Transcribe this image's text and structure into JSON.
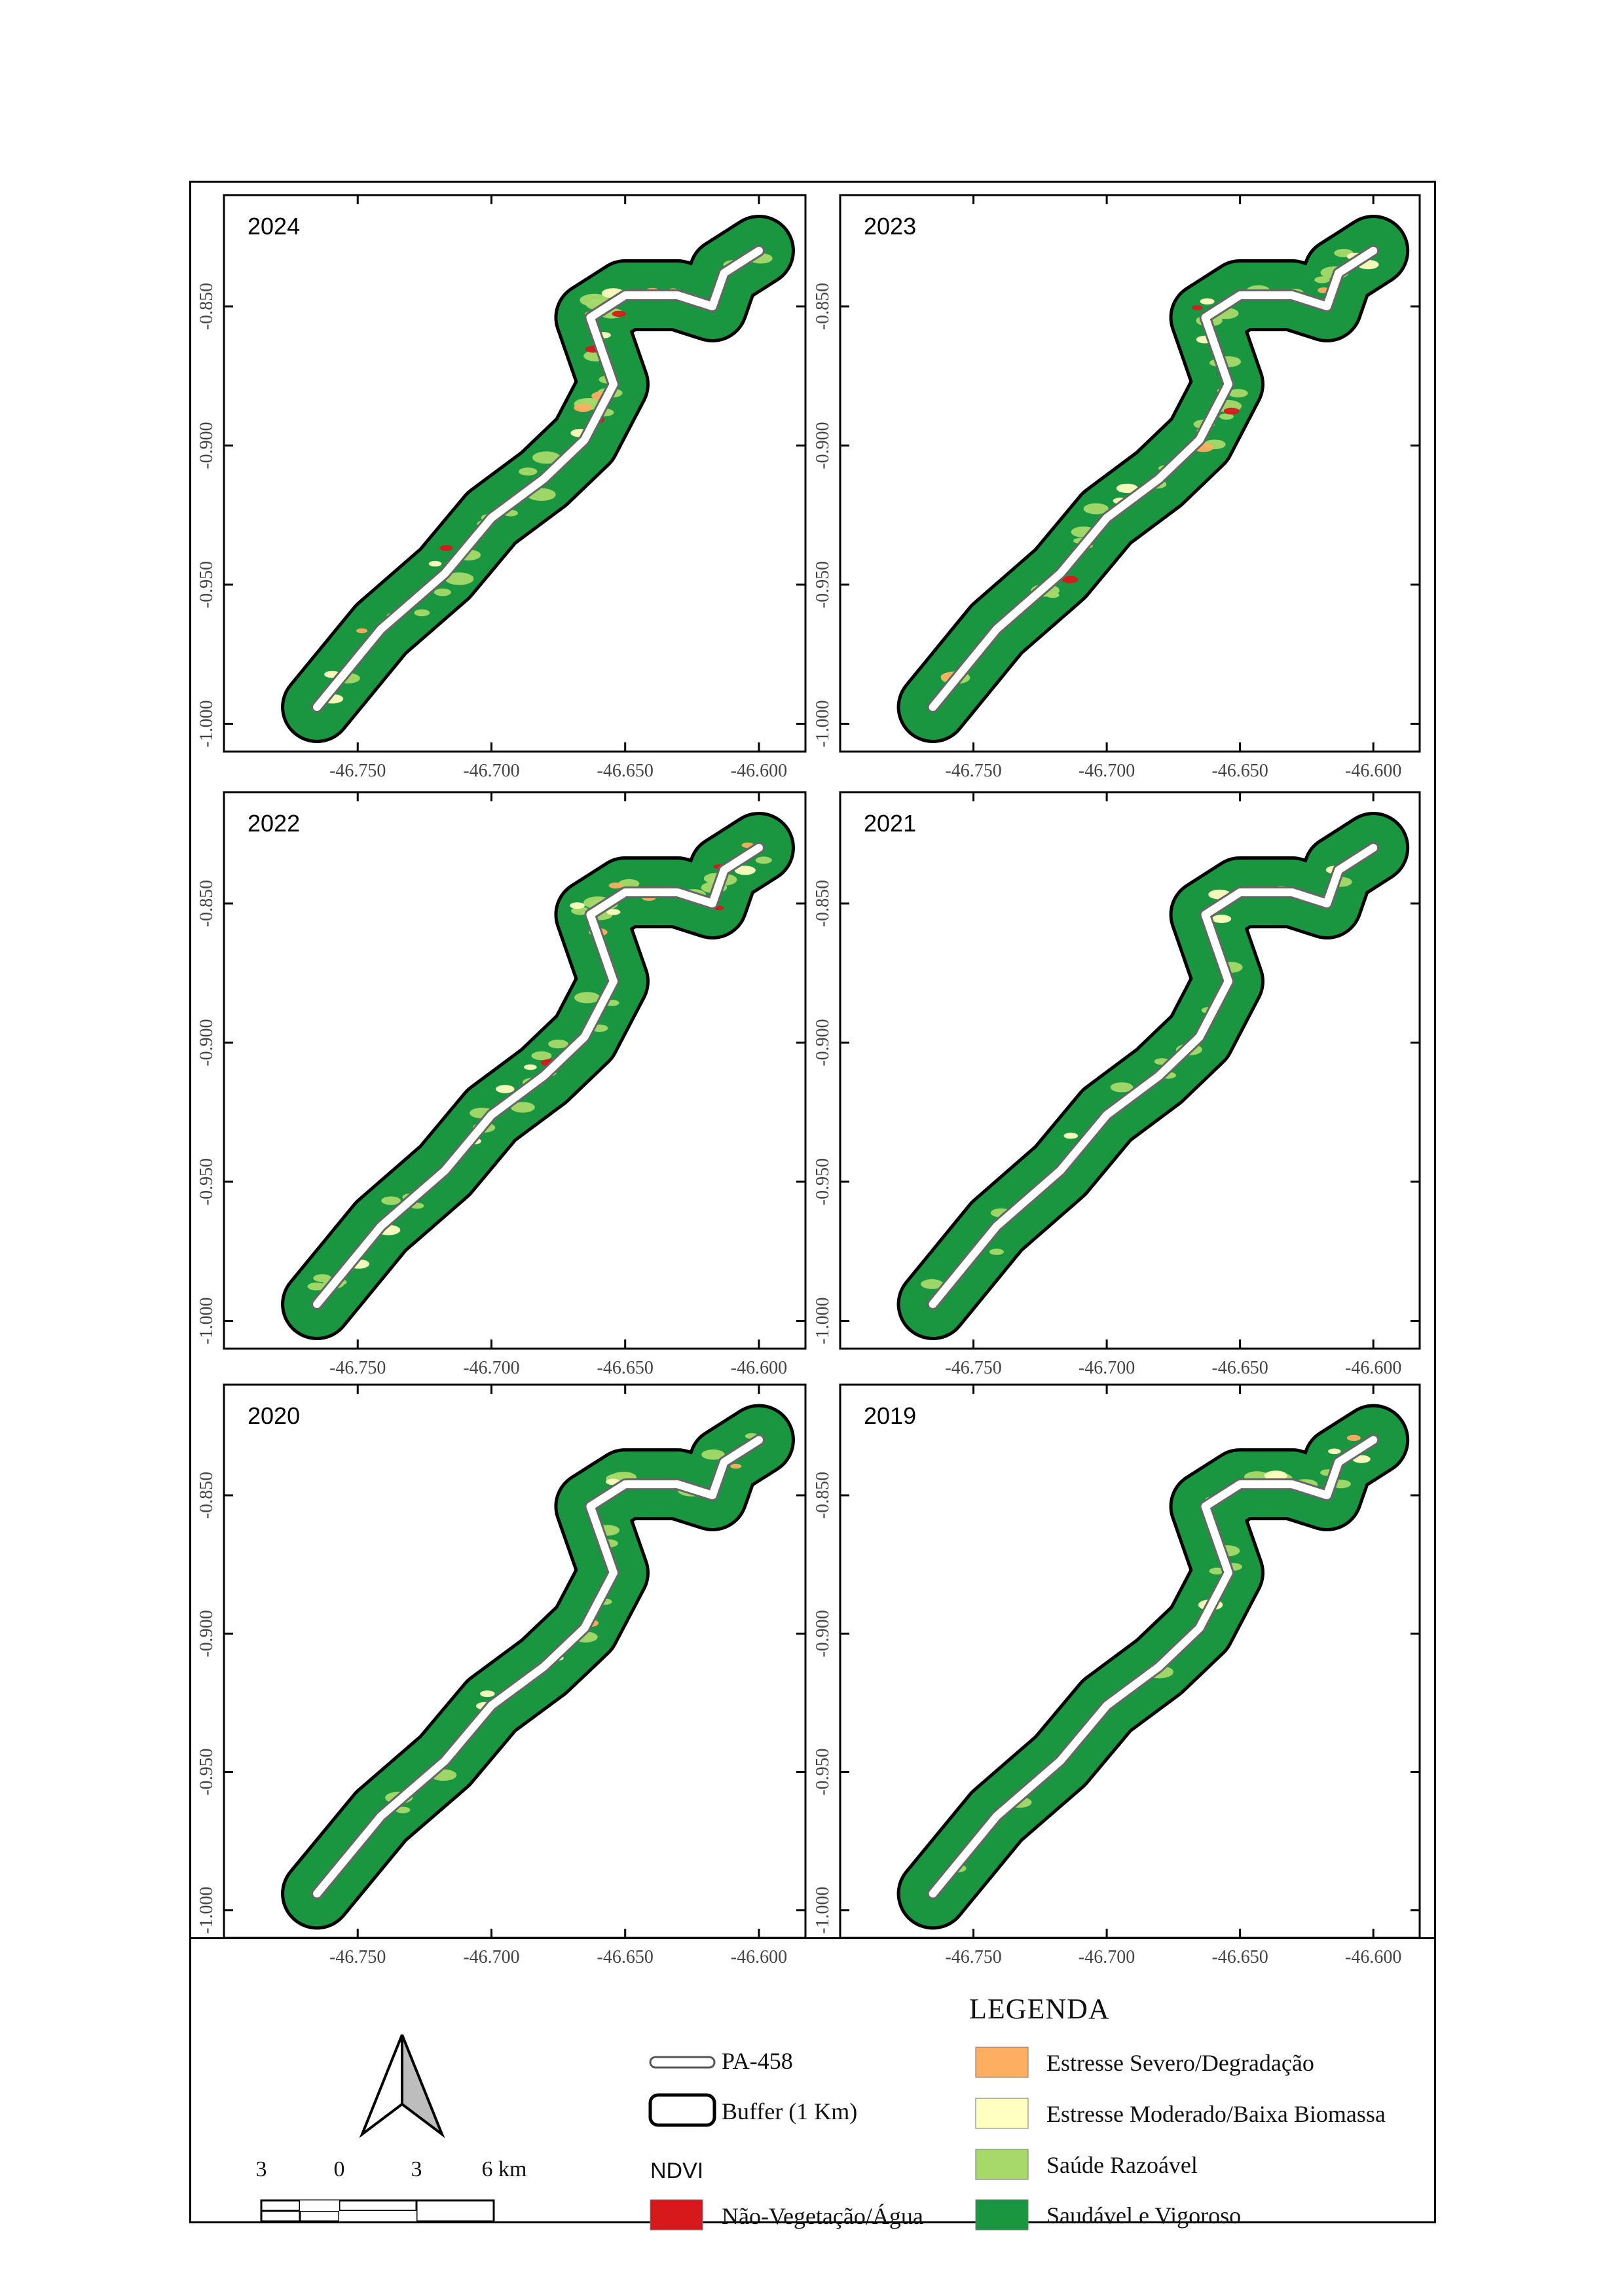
{
  "panels": [
    {
      "year": "2024",
      "red": 4,
      "orange": 6,
      "yellow": 6,
      "light": 26
    },
    {
      "year": "2023",
      "red": 5,
      "orange": 7,
      "yellow": 7,
      "light": 24
    },
    {
      "year": "2022",
      "red": 3,
      "orange": 4,
      "yellow": 8,
      "light": 28
    },
    {
      "year": "2021",
      "red": 0,
      "orange": 1,
      "yellow": 4,
      "light": 10
    },
    {
      "year": "2020",
      "red": 0,
      "orange": 2,
      "yellow": 4,
      "light": 12
    },
    {
      "year": "2019",
      "red": 1,
      "orange": 2,
      "yellow": 5,
      "light": 12
    }
  ],
  "axes": {
    "x_ticks": [
      "-46.750",
      "-46.700",
      "-46.650",
      "-46.600"
    ],
    "y_ticks": [
      "-0.850",
      "-0.900",
      "-0.950",
      "-1.000"
    ]
  },
  "legend": {
    "title": "LEGENDA",
    "road_label": "PA-458",
    "buffer_label": "Buffer (1 Km)",
    "ndvi_title": "NDVI",
    "classes": [
      {
        "label": "Não-Vegetação/Água",
        "color": "#d7191c"
      },
      {
        "label": "Estresse Severo/Degradação",
        "color": "#fdae61"
      },
      {
        "label": "Estresse Moderado/Baixa Biomassa",
        "color": "#ffffc0"
      },
      {
        "label": "Saúde Razoável",
        "color": "#a6d96a"
      },
      {
        "label": "Saudável e Vigoroso",
        "color": "#1a9641"
      }
    ]
  },
  "scale_bar": {
    "labels": [
      "3",
      "0",
      "3",
      "6 km"
    ]
  },
  "colors": {
    "vigorous": "#1a9641",
    "fair": "#a6d96a",
    "moderate": "#ffffc0",
    "severe": "#fdae61",
    "water": "#d7191c"
  }
}
